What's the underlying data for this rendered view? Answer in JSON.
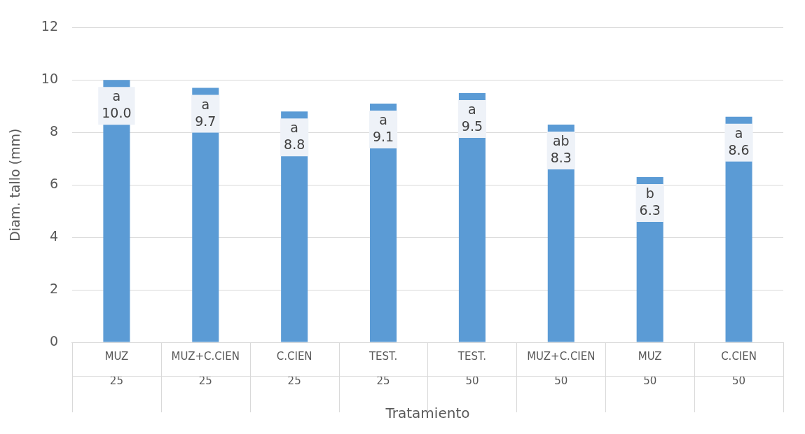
{
  "chart_data": {
    "type": "bar",
    "xlabel": "Tratamiento",
    "ylabel": "Diam. tallo (mm)",
    "categories": [
      "MUZ\n25",
      "MUZ+C.CIEN\n25",
      "C.CIEN\n25",
      "TEST.\n25",
      "TEST.\n50",
      "MUZ+C.CIEN\n50",
      "MUZ\n50",
      "C.CIEN\n50"
    ],
    "values": [
      10.0,
      9.7,
      8.8,
      9.1,
      9.5,
      8.3,
      6.3,
      8.6
    ],
    "value_labels": [
      "a\n10.0",
      "a\n9.7",
      "a\n8.8",
      "a\n9.1",
      "a\n9.5",
      "ab\n8.3",
      "b\n6.3",
      "a\n8.6"
    ],
    "color": "#5b9bd5",
    "ylim": [
      0,
      12
    ],
    "yticks": [
      0,
      2,
      4,
      6,
      8,
      10,
      12
    ],
    "grid": "y",
    "legend": false
  }
}
